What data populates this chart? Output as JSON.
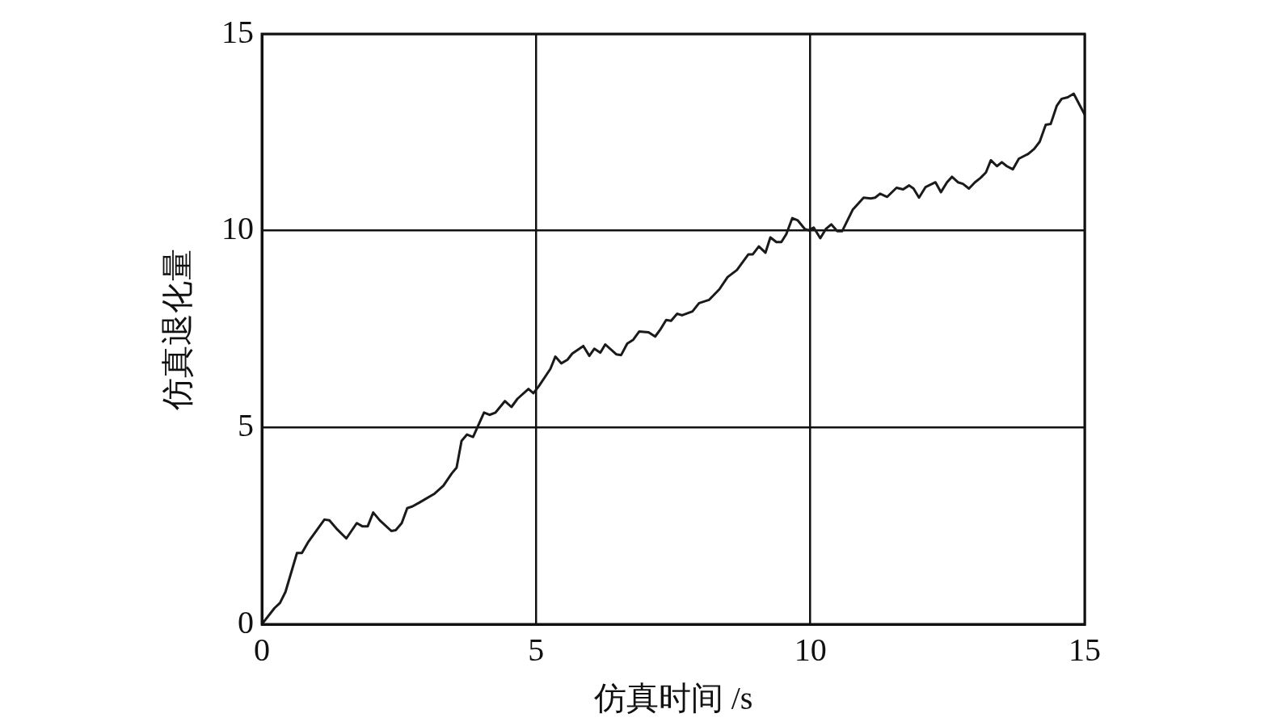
{
  "chart_data": {
    "type": "line",
    "xlabel": "仿真时间 /s",
    "ylabel": "仿真退化量",
    "x": [
      0,
      0.23,
      0.33,
      0.43,
      0.64,
      0.73,
      0.84,
      1.14,
      1.23,
      1.36,
      1.54,
      1.73,
      1.83,
      1.93,
      2.03,
      2.15,
      2.36,
      2.44,
      2.55,
      2.65,
      2.74,
      2.87,
      3.15,
      3.31,
      3.46,
      3.55,
      3.64,
      3.74,
      3.85,
      4.05,
      4.15,
      4.26,
      4.43,
      4.55,
      4.66,
      4.86,
      4.95,
      5.05,
      5.26,
      5.35,
      5.46,
      5.57,
      5.66,
      5.86,
      5.97,
      6.06,
      6.17,
      6.26,
      6.46,
      6.55,
      6.66,
      6.77,
      6.88,
      7.05,
      7.17,
      7.26,
      7.37,
      7.46,
      7.57,
      7.66,
      7.85,
      7.97,
      8.15,
      8.34,
      8.49,
      8.66,
      8.87,
      8.95,
      9.06,
      9.18,
      9.27,
      9.38,
      9.47,
      9.56,
      9.67,
      9.77,
      9.9,
      9.97,
      10.06,
      10.18,
      10.28,
      10.38,
      10.49,
      10.58,
      10.77,
      10.97,
      11.1,
      11.18,
      11.27,
      11.4,
      11.57,
      11.69,
      11.8,
      11.88,
      11.98,
      12.1,
      12.28,
      12.38,
      12.49,
      12.58,
      12.69,
      12.78,
      12.89,
      13,
      13.1,
      13.2,
      13.29,
      13.4,
      13.49,
      13.58,
      13.69,
      13.8,
      13.97,
      14.08,
      14.18,
      14.29,
      14.38,
      14.49,
      14.58,
      14.69,
      14.8,
      14.91,
      15
    ],
    "series": [
      {
        "color": "#1a1a1a",
        "values": [
          0,
          0.41,
          0.54,
          0.82,
          1.81,
          1.81,
          2.08,
          2.66,
          2.64,
          2.43,
          2.18,
          2.57,
          2.49,
          2.49,
          2.84,
          2.64,
          2.37,
          2.39,
          2.57,
          2.95,
          2.99,
          3.09,
          3.32,
          3.52,
          3.83,
          3.98,
          4.66,
          4.82,
          4.76,
          5.38,
          5.32,
          5.38,
          5.67,
          5.52,
          5.73,
          5.98,
          5.87,
          6.05,
          6.49,
          6.8,
          6.63,
          6.72,
          6.88,
          7.07,
          6.82,
          7,
          6.9,
          7.11,
          6.86,
          6.84,
          7.13,
          7.23,
          7.44,
          7.42,
          7.31,
          7.48,
          7.73,
          7.71,
          7.89,
          7.85,
          7.95,
          8.16,
          8.24,
          8.51,
          8.82,
          9,
          9.4,
          9.4,
          9.6,
          9.44,
          9.83,
          9.71,
          9.71,
          9.91,
          10.32,
          10.26,
          10.04,
          10.01,
          10.08,
          9.81,
          10.04,
          10.16,
          9.99,
          9.99,
          10.53,
          10.84,
          10.82,
          10.84,
          10.94,
          10.86,
          11.09,
          11.05,
          11.15,
          11.07,
          10.84,
          11.11,
          11.23,
          10.98,
          11.23,
          11.37,
          11.23,
          11.19,
          11.07,
          11.23,
          11.34,
          11.48,
          11.79,
          11.64,
          11.74,
          11.64,
          11.56,
          11.83,
          11.95,
          12.08,
          12.26,
          12.69,
          12.71,
          13.17,
          13.35,
          13.39,
          13.48,
          13.19,
          12.95
        ]
      }
    ],
    "xlim": [
      0,
      15
    ],
    "ylim": [
      0,
      15
    ],
    "xticks": [
      0,
      5,
      10,
      15
    ],
    "yticks": [
      0,
      5,
      10,
      15
    ],
    "grid": true,
    "legend": false,
    "marker": "none",
    "line_style": "solid"
  }
}
